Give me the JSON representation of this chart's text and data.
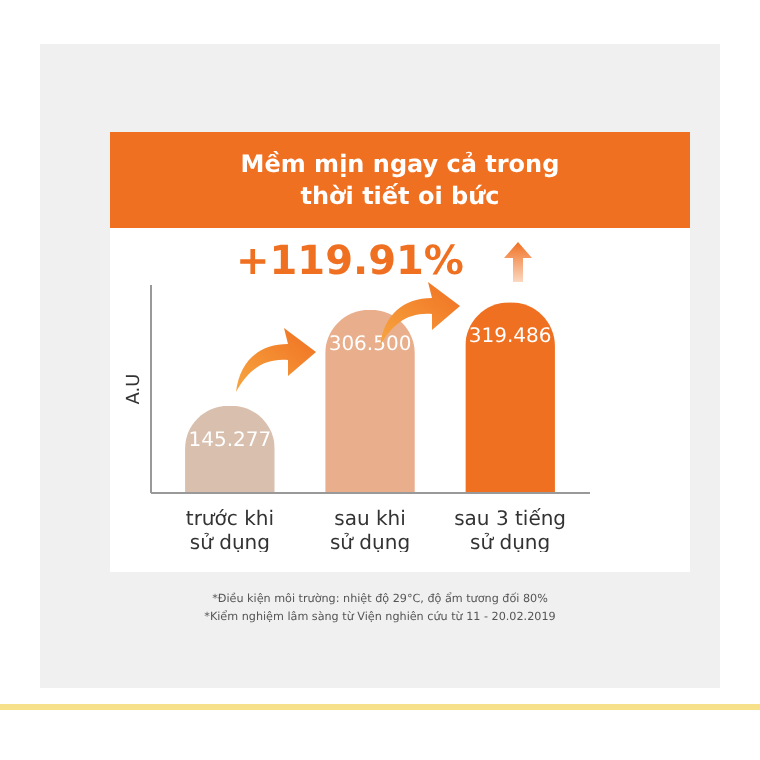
{
  "chart_data": {
    "type": "bar",
    "title": "Mềm mịn ngay cả trong thời tiết oi bức",
    "ylabel": "A.U",
    "categories": [
      "trước khi sử dụng",
      "sau khi sử dụng",
      "sau 3 tiếng sử dụng"
    ],
    "values": [
      145.277,
      306.5,
      319.486
    ],
    "value_labels": [
      "145.277",
      "306.500",
      "319.486"
    ],
    "colors": [
      "#d9bfae",
      "#e9ae8b",
      "#f07022"
    ],
    "annotations": [
      "+119.91%",
      "*Điều kiện môi trường: nhiệt độ 29°C, độ ẩm tương đối 80%",
      "*Kiểm nghiệm lâm sàng từ Viện nghiên cứu từ 11 - 20.02.2019"
    ]
  }
}
